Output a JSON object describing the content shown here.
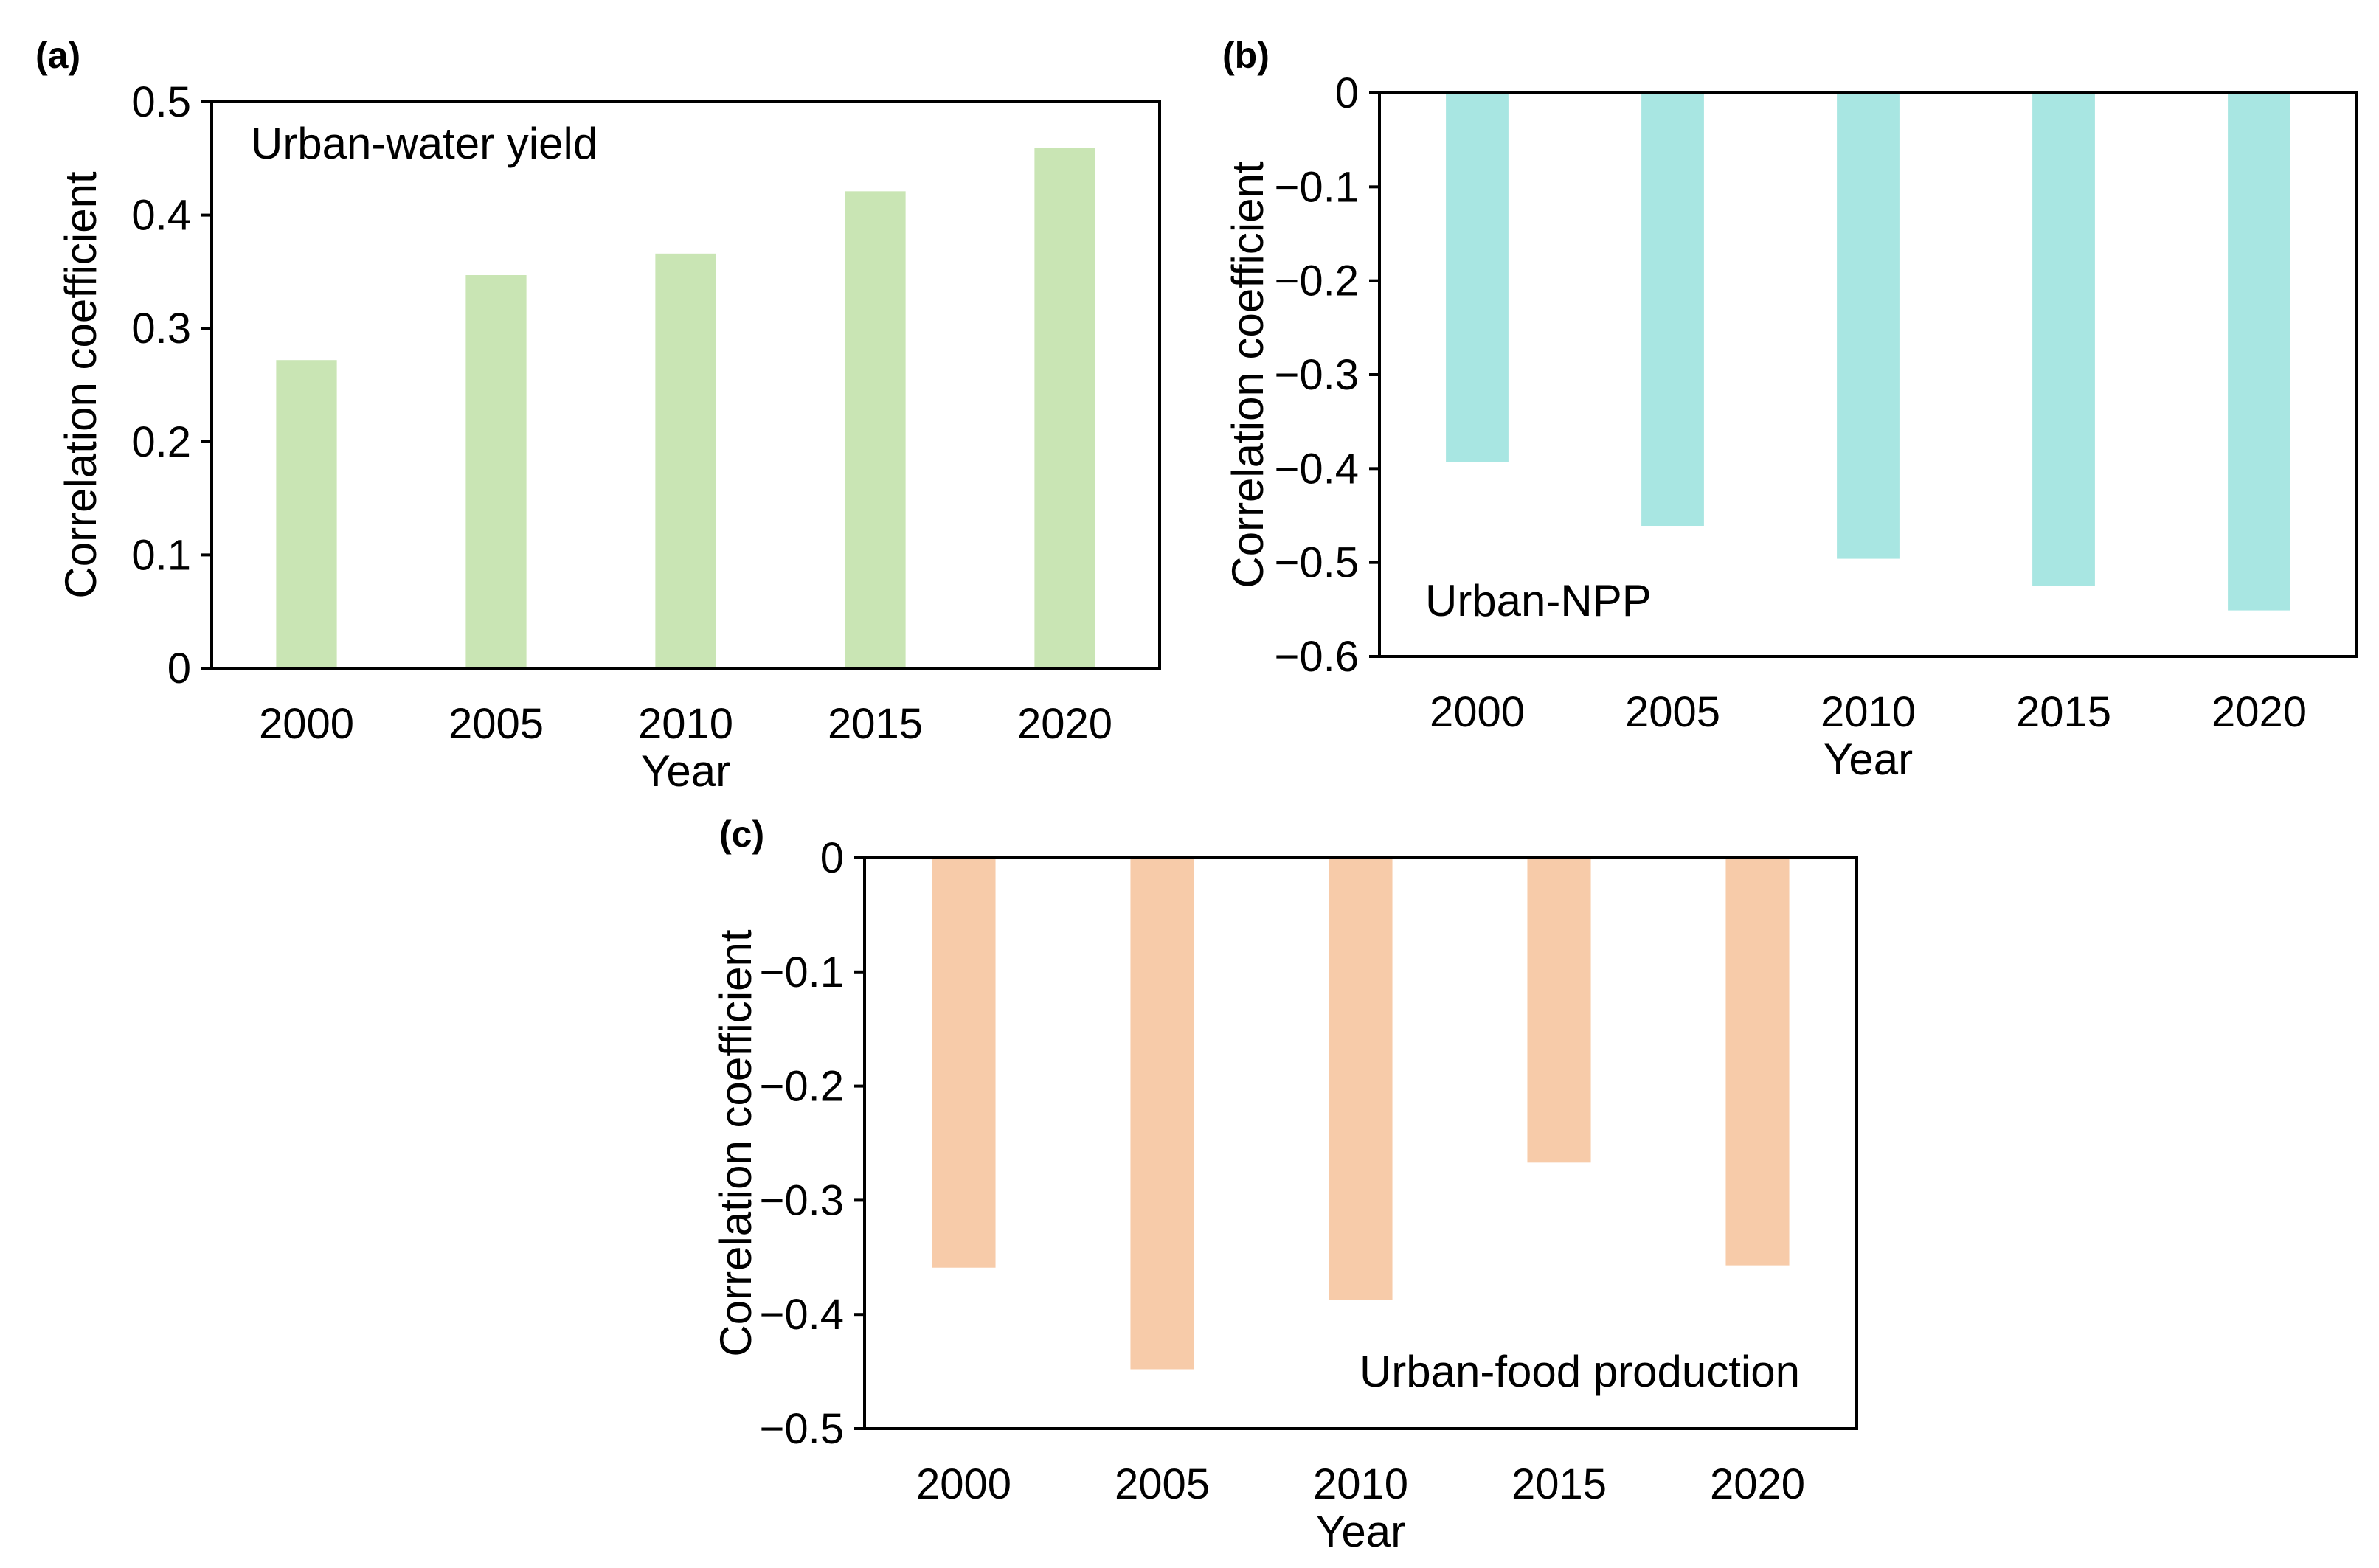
{
  "chart_data": [
    {
      "type": "bar",
      "panel_label": "(a)",
      "annotation": "Urban-water yield",
      "xlabel": "Year",
      "ylabel": "Correlation coefficient",
      "categories": [
        "2000",
        "2005",
        "2010",
        "2015",
        "2020"
      ],
      "values": [
        0.272,
        0.347,
        0.366,
        0.421,
        0.459
      ],
      "ylim": [
        0,
        0.5
      ],
      "yticks": [
        0,
        0.1,
        0.2,
        0.3,
        0.4,
        0.5
      ],
      "ytick_labels": [
        "0",
        "0.1",
        "0.2",
        "0.3",
        "0.4",
        "0.5"
      ],
      "color": "#c9e5b4",
      "grid": false,
      "legend": "none"
    },
    {
      "type": "bar",
      "panel_label": "(b)",
      "annotation": "Urban-NPP",
      "xlabel": "Year",
      "ylabel": "Correlation coefficient",
      "categories": [
        "2000",
        "2005",
        "2010",
        "2015",
        "2020"
      ],
      "values": [
        -0.393,
        -0.461,
        -0.496,
        -0.525,
        -0.551
      ],
      "ylim": [
        -0.6,
        0
      ],
      "yticks": [
        0,
        -0.1,
        -0.2,
        -0.3,
        -0.4,
        -0.5,
        -0.6
      ],
      "ytick_labels": [
        "0",
        "−0.1",
        "−0.2",
        "−0.3",
        "−0.4",
        "−0.5",
        "−0.6"
      ],
      "color": "#a8e6e2",
      "grid": false,
      "legend": "none"
    },
    {
      "type": "bar",
      "panel_label": "(c)",
      "annotation": "Urban-food production",
      "xlabel": "Year",
      "ylabel": "Correlation coefficient",
      "categories": [
        "2000",
        "2005",
        "2010",
        "2015",
        "2020"
      ],
      "values": [
        -0.359,
        -0.448,
        -0.387,
        -0.267,
        -0.357
      ],
      "ylim": [
        -0.5,
        0
      ],
      "yticks": [
        0,
        -0.1,
        -0.2,
        -0.3,
        -0.4,
        -0.5
      ],
      "ytick_labels": [
        "0",
        "−0.1",
        "−0.2",
        "−0.3",
        "−0.4",
        "−0.5"
      ],
      "color": "#f7cba9",
      "grid": false,
      "legend": "none"
    }
  ]
}
